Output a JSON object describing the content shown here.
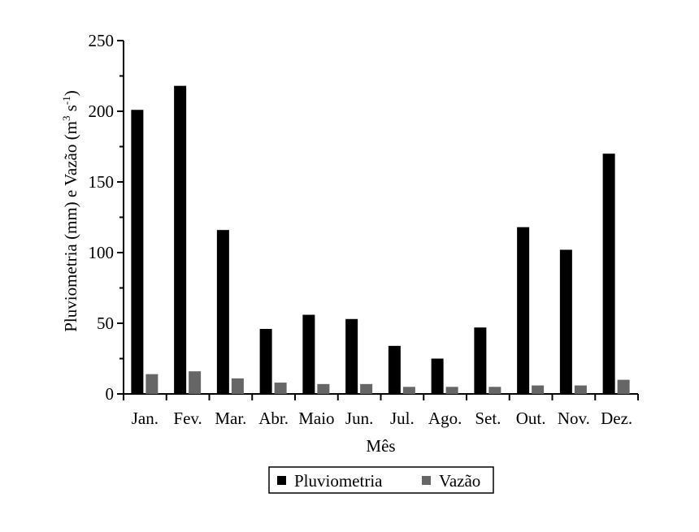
{
  "chart_data": {
    "type": "bar",
    "title": "",
    "xlabel": "Mês",
    "ylabel": "Pluviometria (mm) e  Vazão (m³ s⁻¹)",
    "ylabel_parts": {
      "prefix": "Pluviometria (mm) e  Vazão (m",
      "sup1": "3",
      "mid": " s",
      "sup2": "-1",
      "suffix": ")"
    },
    "ylim": [
      0,
      250
    ],
    "yticks": [
      "0",
      "50",
      "100",
      "150",
      "200",
      "250"
    ],
    "ytick_values": [
      0,
      50,
      100,
      150,
      200,
      250
    ],
    "categories": [
      "Jan.",
      "Fev.",
      "Mar.",
      "Abr.",
      "Maio",
      "Jun.",
      "Jul.",
      "Ago.",
      "Set.",
      "Out.",
      "Nov.",
      "Dez."
    ],
    "series": [
      {
        "name": "Pluviometria",
        "color": "#000000",
        "values": [
          201,
          218,
          116,
          46,
          56,
          53,
          34,
          25,
          47,
          118,
          102,
          170
        ]
      },
      {
        "name": "Vazão",
        "color": "#666666",
        "values": [
          14,
          16,
          11,
          8,
          7,
          7,
          5,
          5,
          5,
          6,
          6,
          10
        ]
      }
    ],
    "legend_position": "bottom-center",
    "grid": false
  }
}
